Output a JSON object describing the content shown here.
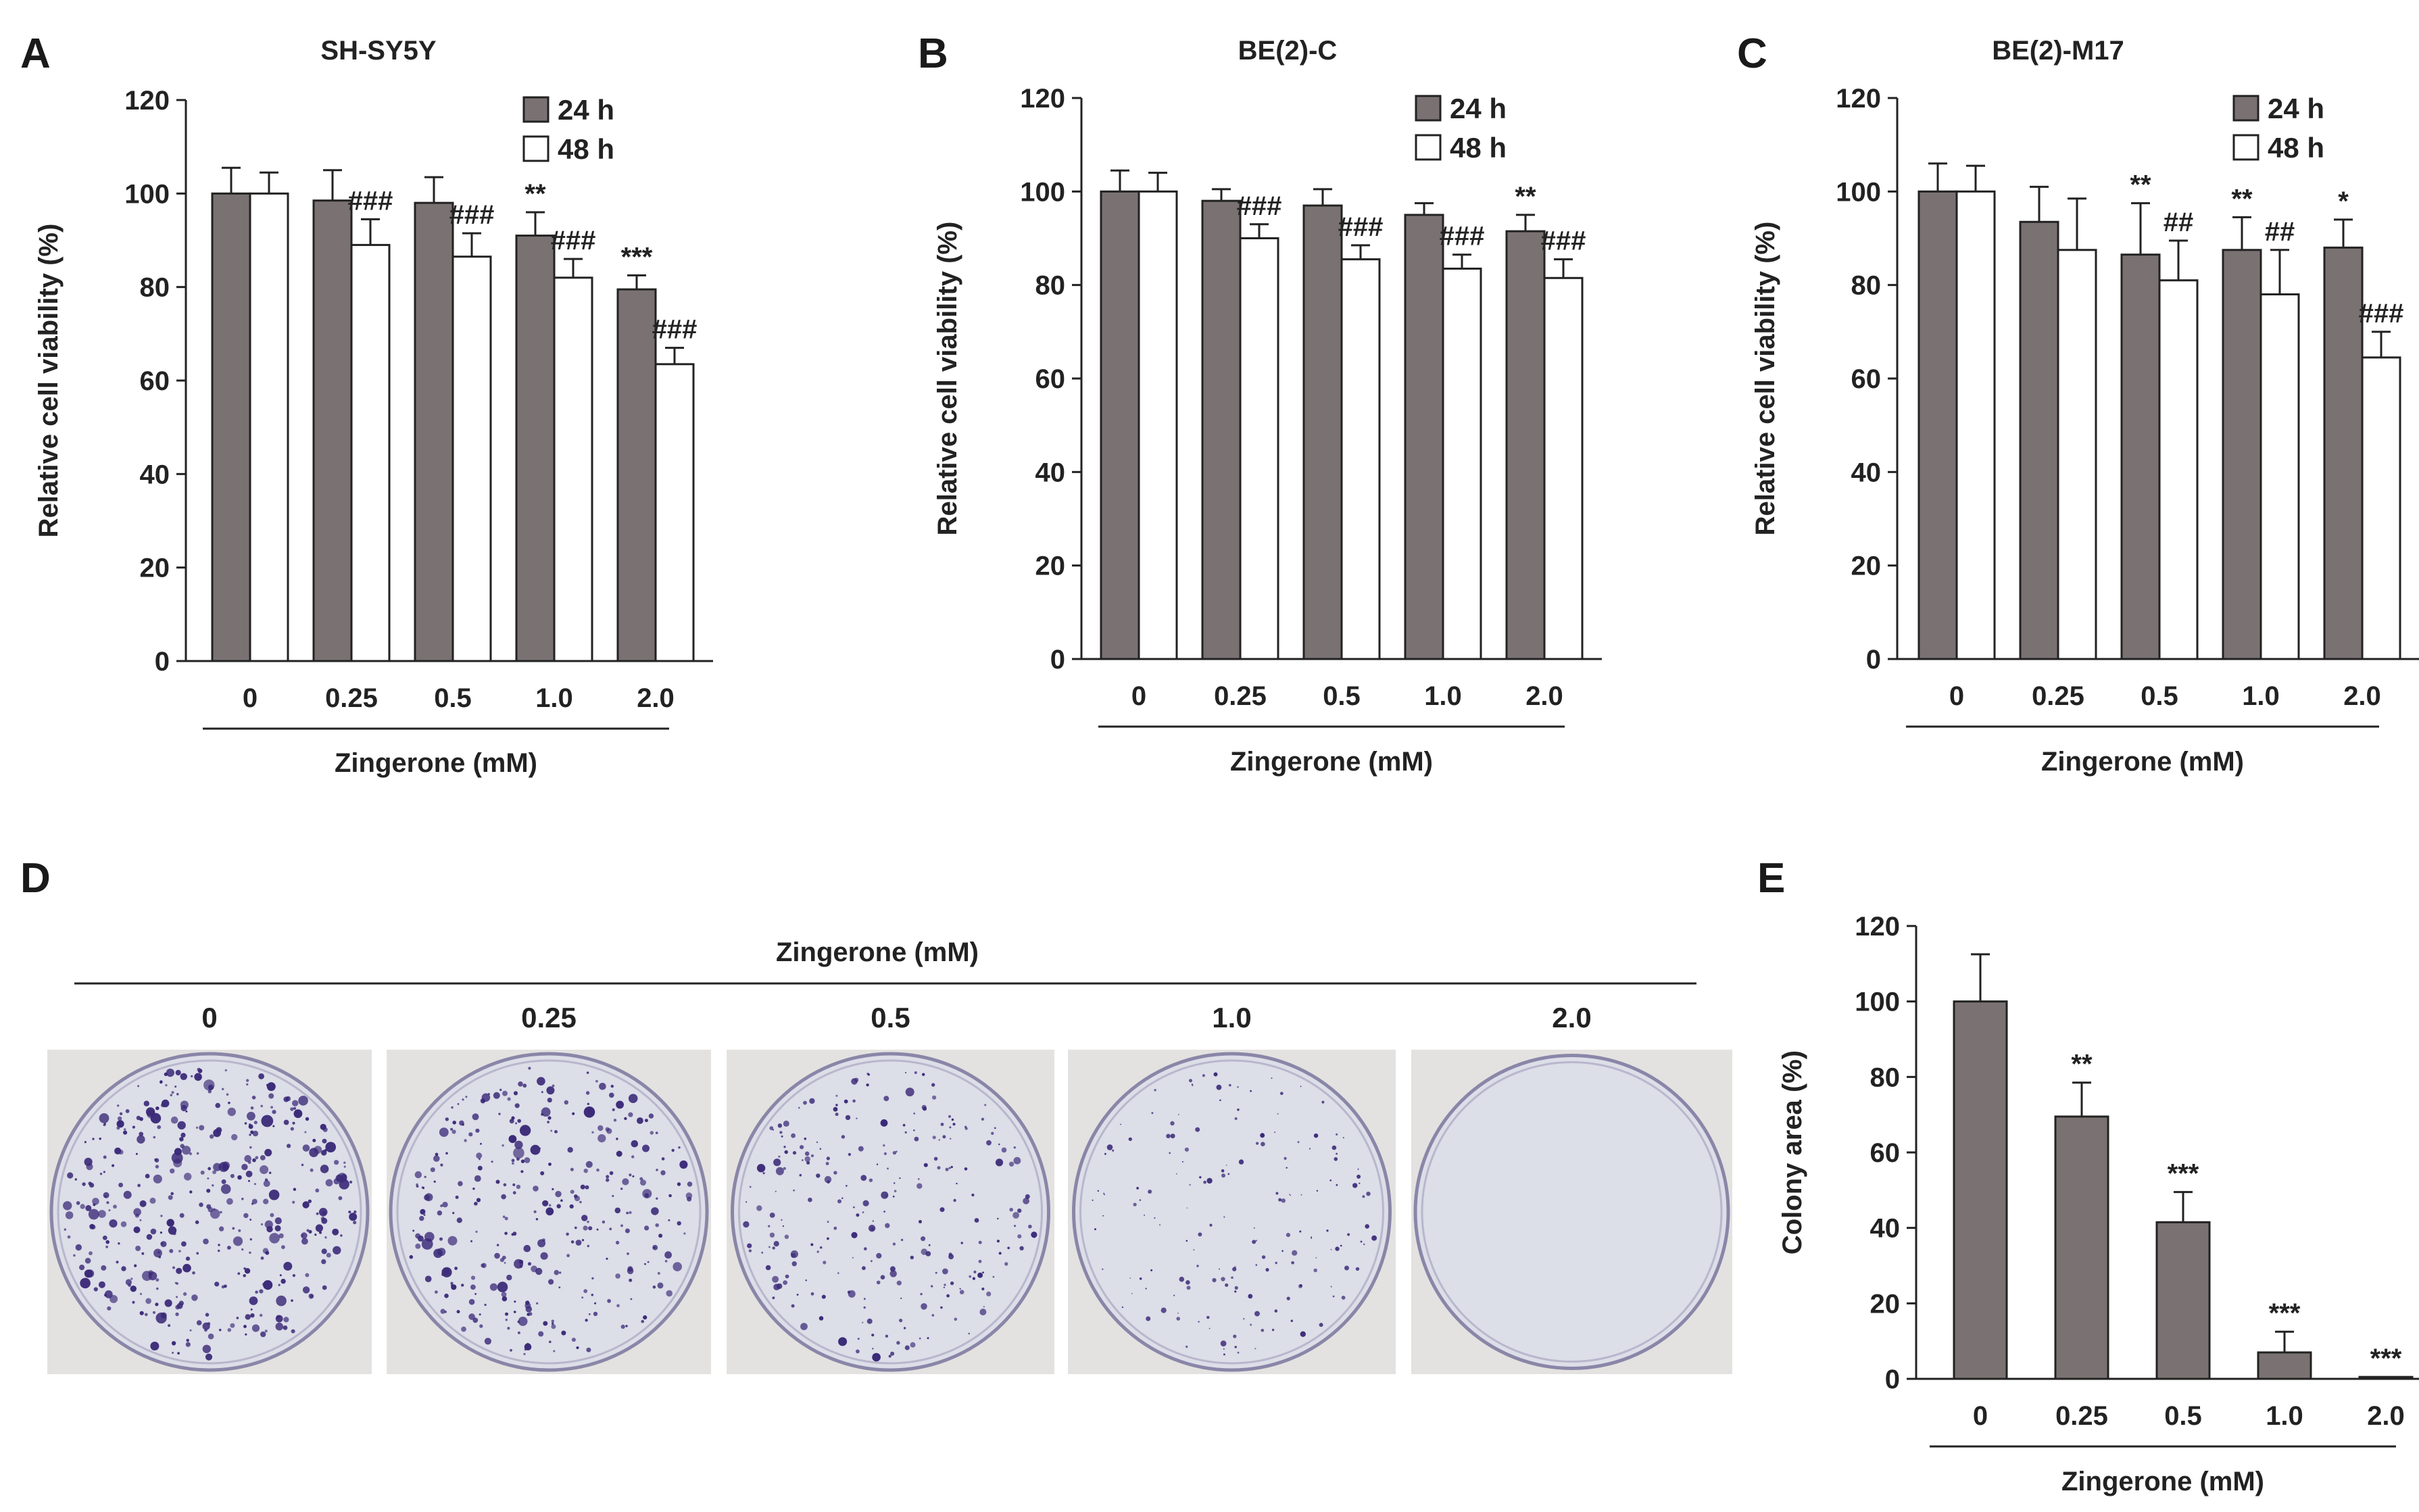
{
  "panels": {
    "A": {
      "letter": "A",
      "title": "SH-SY5Y"
    },
    "B": {
      "letter": "B",
      "title": "BE(2)-C"
    },
    "C": {
      "letter": "C",
      "title": "BE(2)-M17"
    },
    "D": {
      "letter": "D",
      "header": "Zingerone (mM)",
      "conditions": [
        "0",
        "0.25",
        "0.5",
        "1.0",
        "2.0"
      ]
    },
    "E": {
      "letter": "E"
    }
  },
  "colors": {
    "bar_24h": "#7a7272",
    "bar_48h": "#ffffff",
    "edge": "#222222",
    "dish_bg": "#e4e2e0",
    "dish_plate": "#dcdee8",
    "colony": "#3b2a78"
  },
  "chart_data": [
    {
      "type": "bar",
      "panel": "A",
      "title": "SH-SY5Y",
      "categories": [
        "0",
        "0.25",
        "0.5",
        "1.0",
        "2.0"
      ],
      "xlabel": "Zingerone (mM)",
      "ylabel": "Relative cell viability (%)",
      "ylim": [
        0,
        120
      ],
      "yticks": [
        "0",
        "20",
        "40",
        "60",
        "80",
        "100",
        "120"
      ],
      "legend": "top-right",
      "grid": false,
      "series": [
        {
          "name": "24 h",
          "values": [
            100,
            98.5,
            98,
            91,
            79.5
          ],
          "errors": [
            5.5,
            6.5,
            5.5,
            5,
            3
          ],
          "annotations": [
            "",
            "",
            "",
            "**",
            "***"
          ]
        },
        {
          "name": "48 h",
          "values": [
            100,
            89,
            86.5,
            82,
            63.5
          ],
          "errors": [
            4.5,
            5.5,
            5,
            4,
            3.5
          ],
          "annotations": [
            "",
            "###",
            "###",
            "###",
            "###"
          ]
        }
      ]
    },
    {
      "type": "bar",
      "panel": "B",
      "title": "BE(2)-C",
      "categories": [
        "0",
        "0.25",
        "0.5",
        "1.0",
        "2.0"
      ],
      "xlabel": "Zingerone (mM)",
      "ylabel": "Relative cell viability (%)",
      "ylim": [
        0,
        120
      ],
      "yticks": [
        "0",
        "20",
        "40",
        "60",
        "80",
        "100",
        "120"
      ],
      "legend": "top-right",
      "grid": false,
      "series": [
        {
          "name": "24 h",
          "values": [
            100,
            98,
            97,
            95,
            91.5
          ],
          "errors": [
            4.5,
            2.5,
            3.5,
            2.5,
            3.5
          ],
          "annotations": [
            "",
            "",
            "",
            "",
            "**"
          ]
        },
        {
          "name": "48 h",
          "values": [
            100,
            90,
            85.5,
            83.5,
            81.5
          ],
          "errors": [
            4,
            3,
            3,
            3,
            4
          ],
          "annotations": [
            "",
            "###",
            "###",
            "###",
            "###"
          ]
        }
      ]
    },
    {
      "type": "bar",
      "panel": "C",
      "title": "BE(2)-M17",
      "categories": [
        "0",
        "0.25",
        "0.5",
        "1.0",
        "2.0"
      ],
      "xlabel": "Zingerone (mM)",
      "ylabel": "Relative cell viability (%)",
      "ylim": [
        0,
        120
      ],
      "yticks": [
        "0",
        "20",
        "40",
        "60",
        "80",
        "100",
        "120"
      ],
      "legend": "top-right",
      "grid": false,
      "series": [
        {
          "name": "24 h",
          "values": [
            100,
            93.5,
            86.5,
            87.5,
            88
          ],
          "errors": [
            6,
            7.5,
            11,
            7,
            6
          ],
          "annotations": [
            "",
            "",
            "**",
            "**",
            "*"
          ]
        },
        {
          "name": "48 h",
          "values": [
            100,
            87.5,
            81,
            78,
            64.5
          ],
          "errors": [
            5.5,
            11,
            8.5,
            9.5,
            5.5
          ],
          "annotations": [
            "",
            "",
            "##",
            "##",
            "###"
          ]
        }
      ]
    },
    {
      "type": "bar",
      "panel": "E",
      "categories": [
        "0",
        "0.25",
        "0.5",
        "1.0",
        "2.0"
      ],
      "xlabel": "Zingerone (mM)",
      "ylabel": "Colony area (%)",
      "ylim": [
        0,
        120
      ],
      "yticks": [
        "0",
        "20",
        "40",
        "60",
        "80",
        "100",
        "120"
      ],
      "grid": false,
      "series": [
        {
          "values": [
            100,
            69.5,
            41.5,
            7,
            0.5
          ],
          "errors": [
            12.5,
            9,
            8,
            5.5,
            0
          ],
          "annotations": [
            "",
            "**",
            "***",
            "***",
            "***"
          ]
        }
      ]
    }
  ]
}
